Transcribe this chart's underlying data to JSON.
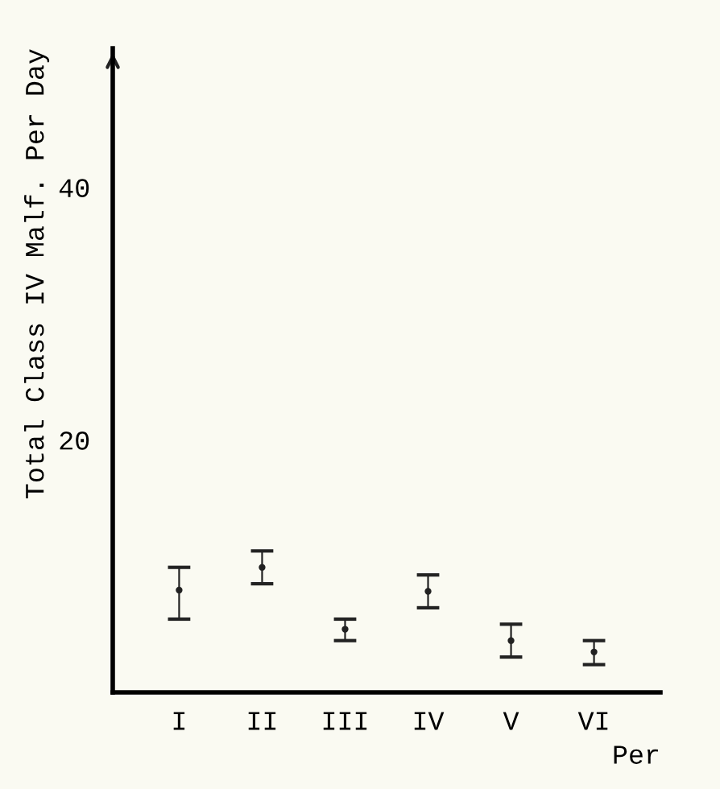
{
  "chart_data": {
    "type": "scatter",
    "ylabel": "Total Class IV Malf. Per Day",
    "xlabel": "Per",
    "categories": [
      "I",
      "II",
      "III",
      "IV",
      "V",
      "VI"
    ],
    "values": [
      8.1,
      9.9,
      5.0,
      8.0,
      4.1,
      3.2
    ],
    "errors": [
      [
        5.8,
        9.9
      ],
      [
        8.6,
        11.2
      ],
      [
        4.1,
        5.8
      ],
      [
        6.7,
        9.3
      ],
      [
        2.8,
        5.4
      ],
      [
        2.2,
        4.1
      ]
    ],
    "ylim": [
      0,
      51
    ],
    "yticks": [
      20,
      40
    ],
    "color": "#222222",
    "marker": "circle",
    "grid": false,
    "legend": false
  }
}
